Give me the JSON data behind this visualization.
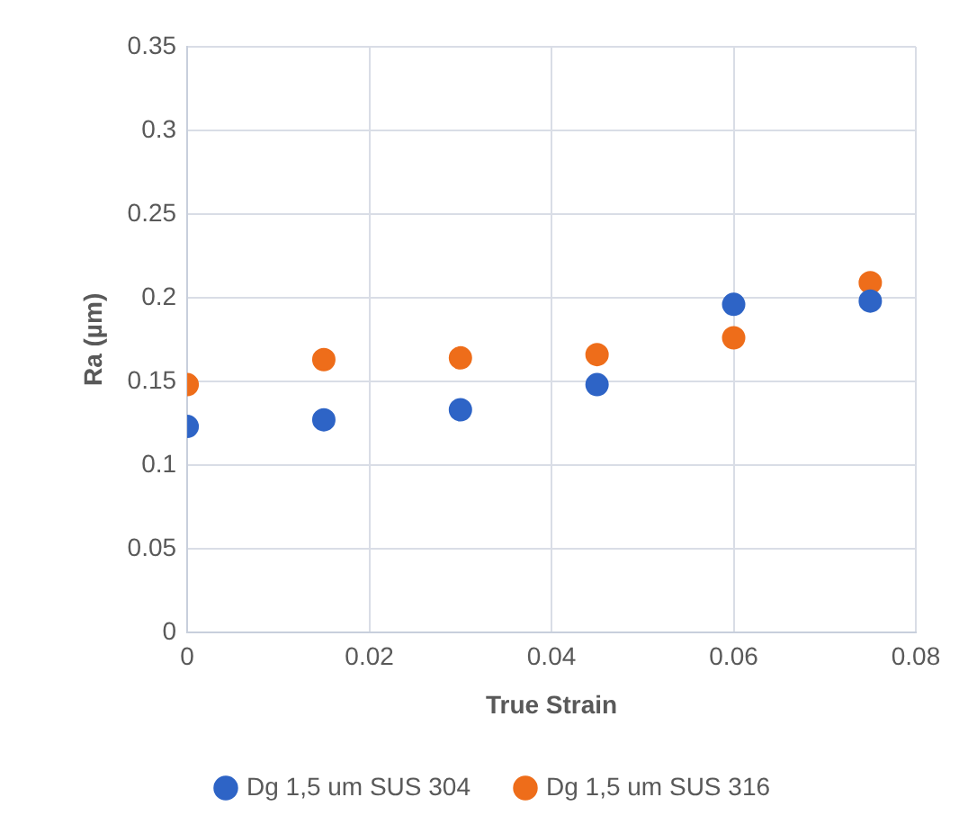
{
  "chart_data": {
    "type": "scatter",
    "xlabel": "True Strain",
    "ylabel": "Ra (µm)",
    "xlim": [
      0,
      0.08
    ],
    "xticks": [
      0,
      0.02,
      0.04,
      0.06,
      0.08
    ],
    "ylim": [
      0,
      0.35
    ],
    "yticks": [
      0,
      0.05,
      0.1,
      0.15,
      0.2,
      0.25,
      0.3,
      0.35
    ],
    "grid": true,
    "legend": "bottom",
    "marker": "circle",
    "x": [
      0,
      0.015,
      0.03,
      0.045,
      0.06,
      0.075
    ],
    "series": [
      {
        "name": "Dg 1,5 um SUS 304",
        "color": "#2e64c6",
        "values": [
          0.123,
          0.127,
          0.133,
          0.148,
          0.196,
          0.198
        ]
      },
      {
        "name": "Dg 1,5 um SUS 316",
        "color": "#ee6d1a",
        "values": [
          0.148,
          0.163,
          0.164,
          0.166,
          0.176,
          0.209
        ]
      }
    ]
  }
}
